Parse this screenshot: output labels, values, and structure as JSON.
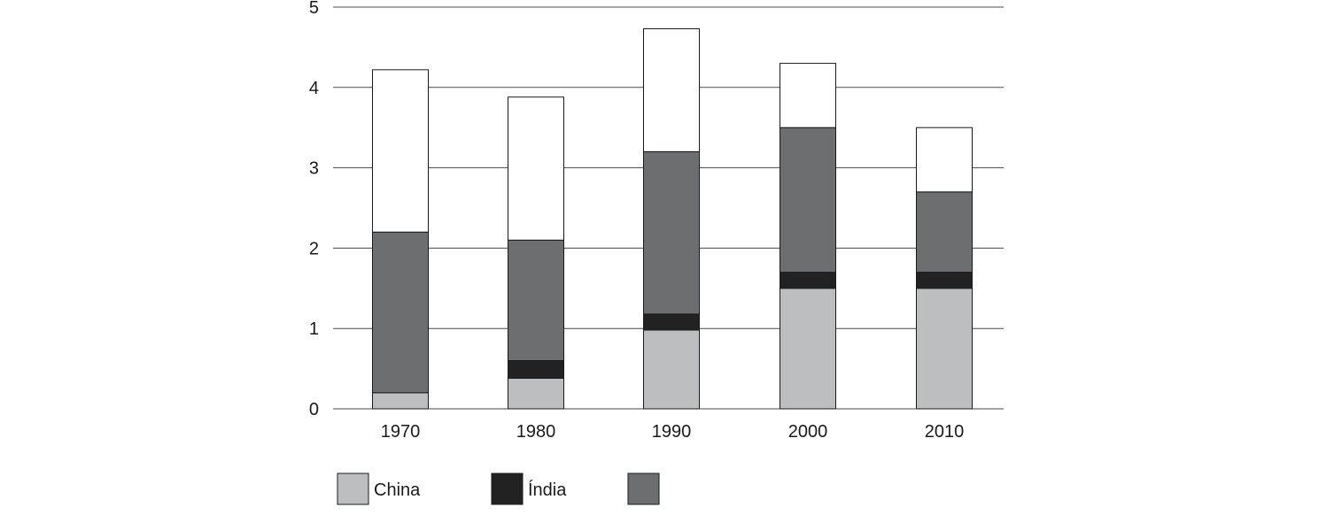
{
  "chart_data": {
    "type": "bar",
    "stacked": true,
    "categories": [
      "1970",
      "1980",
      "1990",
      "2000",
      "2010"
    ],
    "ylim": [
      0,
      5
    ],
    "yticks": [
      "0",
      "1",
      "2",
      "3",
      "4",
      "5"
    ],
    "grid": true,
    "title": "",
    "xlabel": "",
    "ylabel": "",
    "series": [
      {
        "name": "China",
        "color": "#bdbec0",
        "values": [
          0.2,
          0.38,
          0.98,
          1.5,
          1.5
        ]
      },
      {
        "name": "Índia",
        "color": "#222222",
        "values": [
          0.0,
          0.22,
          0.2,
          0.2,
          0.2
        ]
      },
      {
        "name": "",
        "color": "#6d6e70",
        "values": [
          2.0,
          1.5,
          2.02,
          1.8,
          1.0
        ]
      },
      {
        "name": "",
        "color": "#ffffff",
        "values": [
          2.02,
          1.78,
          1.53,
          0.8,
          0.8
        ]
      }
    ],
    "legend": {
      "position": "bottom-left",
      "entries": [
        {
          "label": "China",
          "color": "#bdbec0"
        },
        {
          "label": "Índia",
          "color": "#222222"
        },
        {
          "label": "",
          "color": "#6d6e70"
        }
      ]
    }
  }
}
